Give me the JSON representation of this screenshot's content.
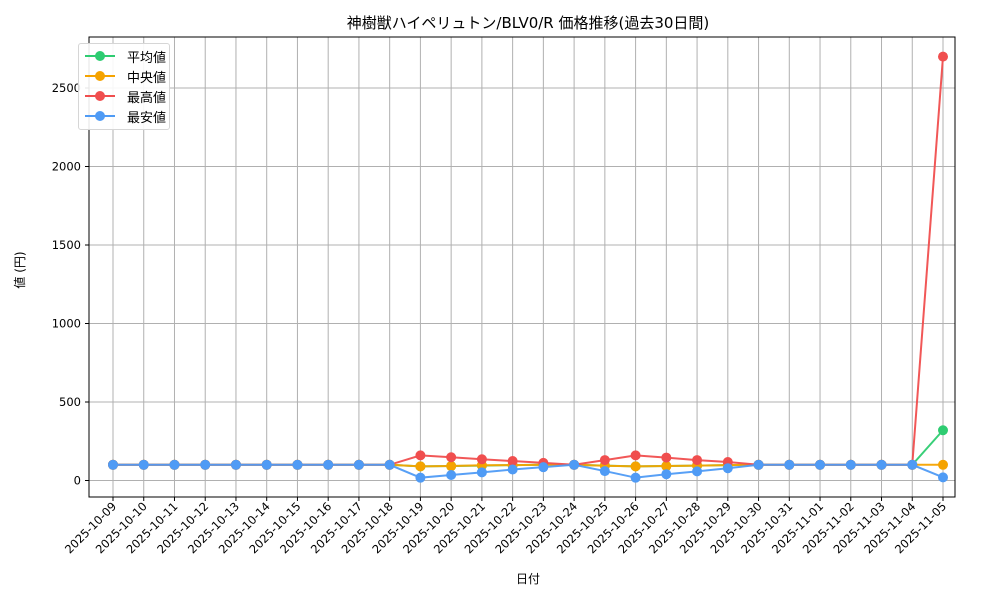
{
  "chart_data": {
    "type": "line",
    "title": "神樹獣ハイペリュトン/BLV0/R 価格推移(過去30日間)",
    "xlabel": "日付",
    "ylabel": "値 (円)",
    "ylim": [
      -100,
      2830
    ],
    "yticks": [
      0,
      500,
      1000,
      1500,
      2000,
      2500
    ],
    "grid": true,
    "legend_position": "upper left",
    "x": [
      "2025-10-09",
      "2025-10-10",
      "2025-10-11",
      "2025-10-12",
      "2025-10-13",
      "2025-10-14",
      "2025-10-15",
      "2025-10-16",
      "2025-10-17",
      "2025-10-18",
      "2025-10-19",
      "2025-10-20",
      "2025-10-21",
      "2025-10-22",
      "2025-10-23",
      "2025-10-24",
      "2025-10-25",
      "2025-10-26",
      "2025-10-27",
      "2025-10-28",
      "2025-10-29",
      "2025-10-30",
      "2025-10-31",
      "2025-11-01",
      "2025-11-02",
      "2025-11-03",
      "2025-11-04",
      "2025-11-05"
    ],
    "series": [
      {
        "name": "平均値",
        "color": "#2ecc71",
        "values": [
          100,
          100,
          100,
          100,
          100,
          100,
          100,
          100,
          100,
          100,
          90,
          92,
          95,
          98,
          100,
          100,
          95,
          90,
          92,
          95,
          98,
          100,
          100,
          100,
          100,
          100,
          100,
          320
        ]
      },
      {
        "name": "中央値",
        "color": "#f5a300",
        "values": [
          100,
          100,
          100,
          100,
          100,
          100,
          100,
          100,
          100,
          100,
          90,
          92,
          97,
          98,
          100,
          100,
          94,
          90,
          92,
          95,
          98,
          100,
          100,
          100,
          100,
          100,
          100,
          100
        ]
      },
      {
        "name": "最高値",
        "color": "#f04e4e",
        "values": [
          100,
          100,
          100,
          100,
          100,
          100,
          100,
          100,
          100,
          100,
          160,
          148,
          135,
          124,
          112,
          100,
          130,
          160,
          146,
          130,
          118,
          100,
          100,
          100,
          100,
          100,
          100,
          2700
        ]
      },
      {
        "name": "最安値",
        "color": "#4f9bf5",
        "values": [
          100,
          100,
          100,
          100,
          100,
          100,
          100,
          100,
          100,
          100,
          18,
          35,
          52,
          70,
          85,
          100,
          60,
          18,
          40,
          58,
          78,
          100,
          100,
          100,
          100,
          100,
          100,
          20
        ]
      }
    ]
  }
}
